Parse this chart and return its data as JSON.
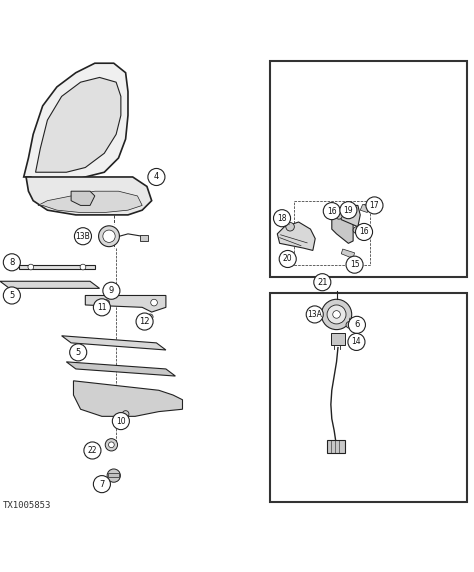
{
  "bg_color": "#ffffff",
  "line_color": "#222222",
  "label_color": "#111111",
  "fig_width": 4.74,
  "fig_height": 5.72,
  "dpi": 100,
  "footer_text": "TX1005853"
}
